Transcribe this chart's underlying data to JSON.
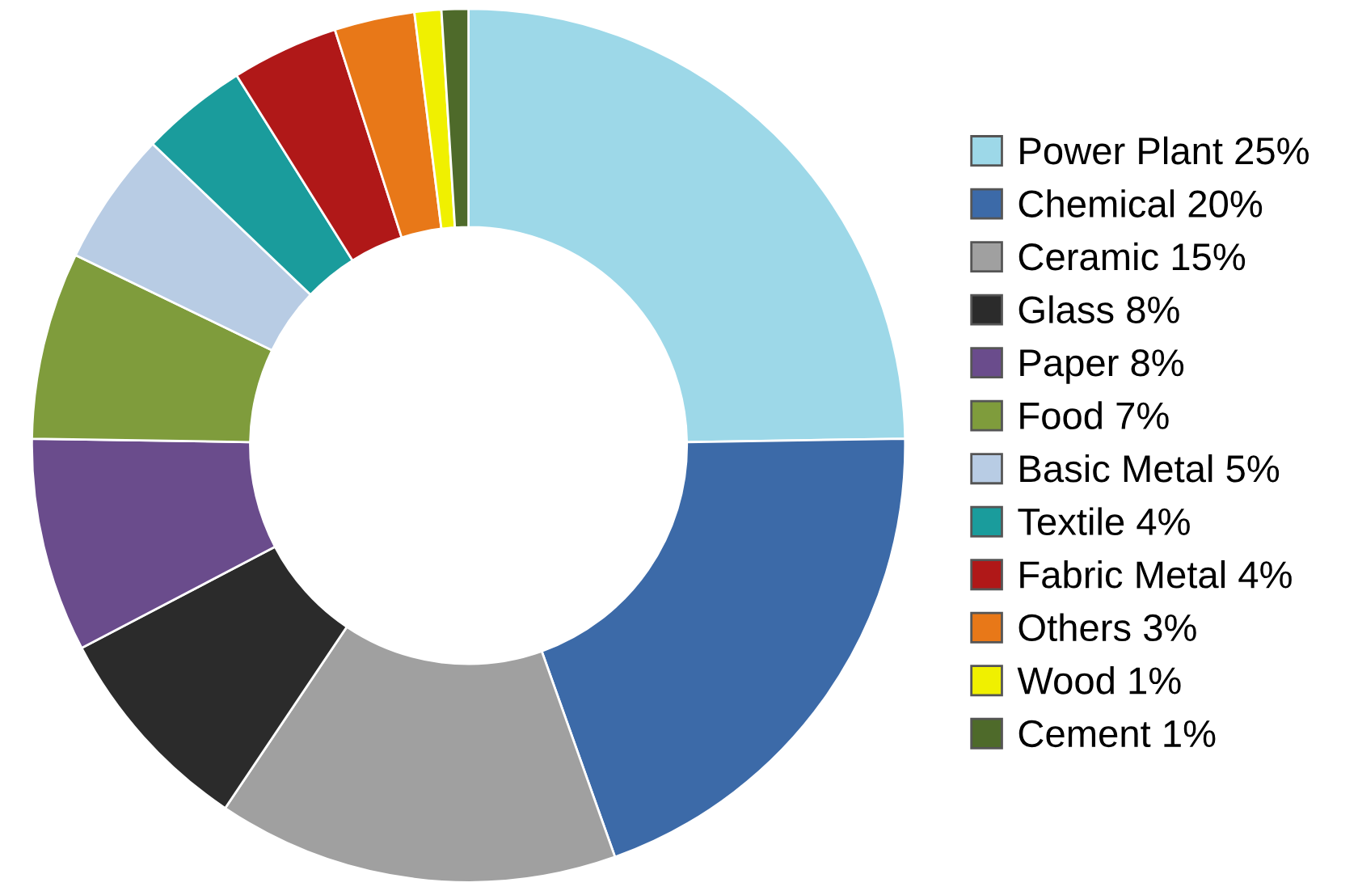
{
  "chart_data": {
    "type": "donut",
    "categories": [
      "Power Plant 25%",
      "Chemical 20%",
      "Ceramic 15%",
      "Glass 8%",
      "Paper 8%",
      "Food 7%",
      "Basic Metal 5%",
      "Textile 4%",
      "Fabric Metal 4%",
      "Others 3%",
      "Wood 1%",
      "Cement 1%"
    ],
    "values": [
      25,
      20,
      15,
      8,
      8,
      7,
      5,
      4,
      4,
      3,
      1,
      1
    ],
    "colors": [
      "#9dd8e8",
      "#3c6aa8",
      "#a0a0a0",
      "#2b2b2b",
      "#6a4c8c",
      "#7f9c3c",
      "#b8cce4",
      "#1a9c9c",
      "#b01818",
      "#e87818",
      "#f0f000",
      "#4e6a2a"
    ],
    "legend": "right"
  }
}
